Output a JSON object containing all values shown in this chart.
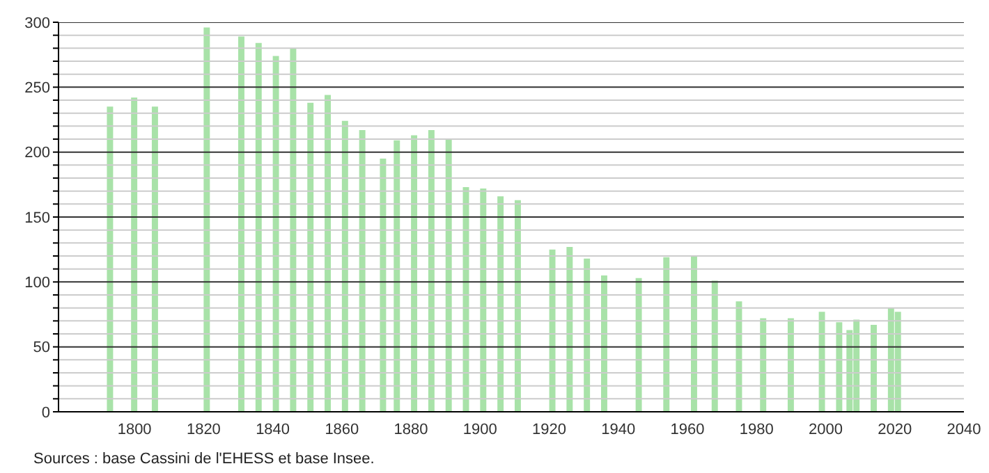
{
  "chart_data": {
    "type": "bar",
    "x": [
      1793,
      1800,
      1806,
      1821,
      1831,
      1836,
      1841,
      1846,
      1851,
      1856,
      1861,
      1866,
      1872,
      1876,
      1881,
      1886,
      1891,
      1896,
      1901,
      1906,
      1911,
      1921,
      1926,
      1931,
      1936,
      1946,
      1954,
      1962,
      1968,
      1975,
      1982,
      1990,
      1999,
      2004,
      2007,
      2009,
      2014,
      2019,
      2021
    ],
    "values": [
      235,
      242,
      235,
      296,
      289,
      284,
      274,
      280,
      238,
      244,
      224,
      217,
      195,
      209,
      213,
      217,
      210,
      173,
      172,
      166,
      163,
      125,
      127,
      118,
      105,
      103,
      119,
      120,
      101,
      85,
      72,
      72,
      77,
      69,
      63,
      71,
      67,
      80,
      77
    ],
    "color": "#a8e2a8",
    "xlim": [
      1778,
      2040
    ],
    "xticks": [
      1800,
      1820,
      1840,
      1860,
      1880,
      1900,
      1920,
      1940,
      1960,
      1980,
      2000,
      2020,
      2040
    ],
    "ylim": [
      0,
      300
    ],
    "yticks": [
      0,
      {
        "value": 10,
        "label": null
      },
      {
        "value": 20,
        "label": null
      },
      {
        "value": 30,
        "label": null
      },
      {
        "value": 40,
        "label": null
      },
      50,
      {
        "value": 60,
        "label": null
      },
      {
        "value": 70,
        "label": null
      },
      {
        "value": 80,
        "label": null
      },
      {
        "value": 90,
        "label": null
      },
      100,
      {
        "value": 110,
        "label": null
      },
      {
        "value": 120,
        "label": null
      },
      {
        "value": 130,
        "label": null
      },
      {
        "value": 140,
        "label": null
      },
      150,
      {
        "value": 160,
        "label": null
      },
      {
        "value": 170,
        "label": null
      },
      {
        "value": 180,
        "label": null
      },
      {
        "value": 190,
        "label": null
      },
      200,
      {
        "value": 210,
        "label": null
      },
      {
        "value": 220,
        "label": null
      },
      {
        "value": 230,
        "label": null
      },
      {
        "value": 240,
        "label": null
      },
      250,
      {
        "value": 260,
        "label": null
      },
      {
        "value": 270,
        "label": null
      },
      {
        "value": 280,
        "label": null
      },
      {
        "value": 290,
        "label": null
      },
      300
    ],
    "grid": true,
    "annotations": [
      "Sources : base Cassini de l'EHESS et base Insee."
    ]
  }
}
